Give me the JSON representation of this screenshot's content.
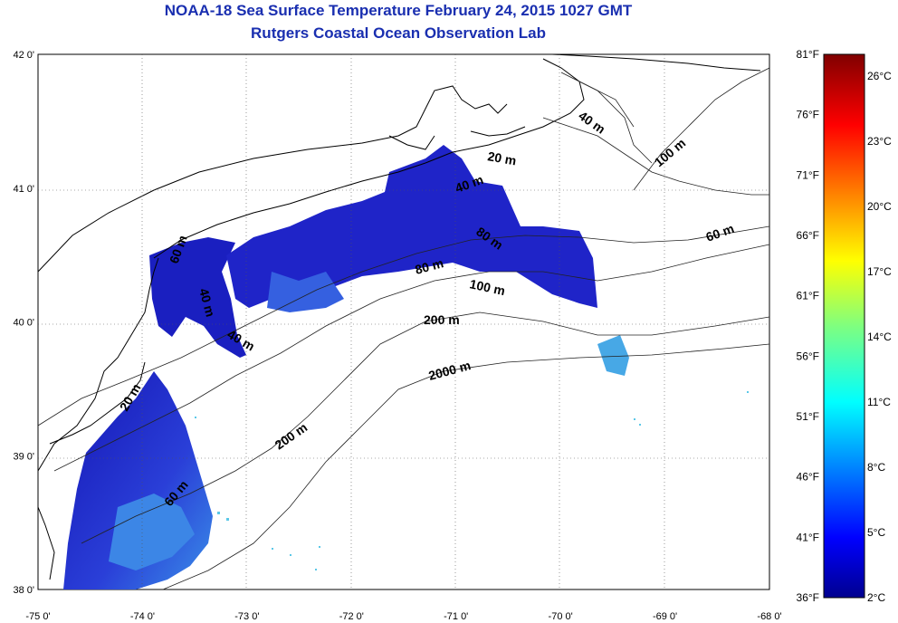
{
  "title": "NOAA-18 Sea Surface Temperature February 24, 2015 1027 GMT",
  "subtitle": "Rutgers Coastal Ocean Observation Lab",
  "map": {
    "lon_labels": [
      "-75 0'",
      "-74 0'",
      "-73 0'",
      "-72 0'",
      "-71 0'",
      "-70 0'",
      "-69 0'",
      "-68 0'"
    ],
    "lat_labels": [
      "42 0'",
      "41 0'",
      "40 0'",
      "39 0'",
      "38 0'"
    ],
    "lon_range": [
      -75,
      -68
    ],
    "lat_range": [
      38,
      42
    ],
    "contour_labels": [
      "40 m",
      "20 m",
      "40 m",
      "100 m",
      "60 m",
      "80 m",
      "80 m",
      "100 m",
      "200 m",
      "2000 m",
      "200 m",
      "60 m",
      "20 m",
      "40 m",
      "40 m",
      "60 m"
    ],
    "colors": {
      "land": "#ffffff",
      "cold_sst": "#1c1cc8",
      "warm_sst": "#3fb8e8",
      "contour": "#000000",
      "title": "#1a2fb0"
    }
  },
  "colorbar": {
    "fahrenheit": [
      "81°F",
      "76°F",
      "71°F",
      "66°F",
      "61°F",
      "56°F",
      "51°F",
      "46°F",
      "41°F",
      "36°F"
    ],
    "celsius": [
      "26°C",
      "23°C",
      "20°C",
      "17°C",
      "14°C",
      "11°C",
      "8°C",
      "5°C",
      "2°C"
    ],
    "range_c": [
      2,
      27
    ],
    "range_f": [
      36,
      81
    ],
    "colormap": "jet"
  }
}
